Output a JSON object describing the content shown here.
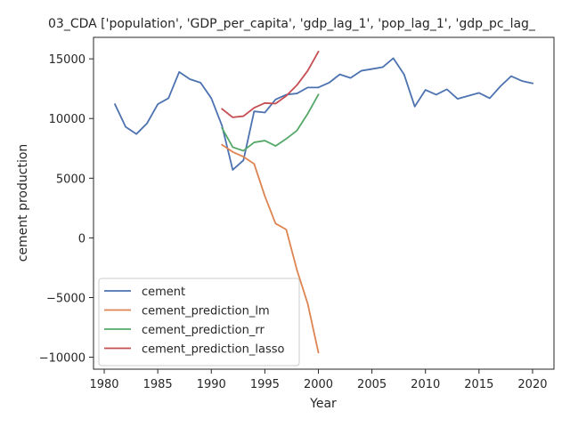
{
  "chart_data": {
    "type": "line",
    "title": "03_CDA ['population', 'GDP_per_capita', 'gdp_lag_1', 'pop_lag_1', 'gdp_pc_lag_",
    "xlabel": "Year",
    "ylabel": "cement production",
    "xlim": [
      1979.0,
      2022.0
    ],
    "ylim": [
      -11000,
      16800
    ],
    "xticks": [
      1980,
      1985,
      1990,
      1995,
      2000,
      2005,
      2010,
      2015,
      2020
    ],
    "yticks": [
      -10000,
      -5000,
      0,
      5000,
      10000,
      15000
    ],
    "ytick_labels": [
      "−10000",
      "−5000",
      "0",
      "5000",
      "10000",
      "15000"
    ],
    "grid": false,
    "legend_position": "lower-left",
    "series": [
      {
        "name": "cement",
        "color": "#4c72b0",
        "x": [
          1981,
          1982,
          1983,
          1984,
          1985,
          1986,
          1987,
          1988,
          1989,
          1990,
          1991,
          1992,
          1993,
          1994,
          1995,
          1996,
          1997,
          1998,
          1999,
          2000,
          2001,
          2002,
          2003,
          2004,
          2005,
          2006,
          2007,
          2008,
          2009,
          2010,
          2011,
          2012,
          2013,
          2014,
          2015,
          2016,
          2017,
          2018,
          2019,
          2020
        ],
        "y": [
          11200,
          9300,
          8700,
          9600,
          11200,
          11700,
          13900,
          13300,
          13000,
          11700,
          9400,
          5700,
          6500,
          10600,
          10500,
          11600,
          12000,
          12100,
          12600,
          12600,
          13000,
          13700,
          13400,
          14000,
          14150,
          14300,
          15050,
          13700,
          11000,
          12400,
          12000,
          12450,
          11650,
          11900,
          12150,
          11700,
          12700,
          13550,
          13150,
          12950
        ]
      },
      {
        "name": "cement_prediction_lm",
        "color": "#dd8452",
        "x": [
          1991,
          1992,
          1993,
          1994,
          1995,
          1996,
          1997,
          1998,
          1999,
          2000
        ],
        "y": [
          7800,
          7200,
          6800,
          6200,
          3500,
          1200,
          700,
          -2700,
          -5500,
          -9600
        ]
      },
      {
        "name": "cement_prediction_rr",
        "color": "#55a868",
        "x": [
          1991,
          1992,
          1993,
          1994,
          1995,
          1996,
          1997,
          1998,
          1999,
          2000
        ],
        "y": [
          9200,
          7600,
          7300,
          8000,
          8150,
          7700,
          8300,
          9000,
          10400,
          12000
        ]
      },
      {
        "name": "cement_prediction_lasso",
        "color": "#c44e52",
        "x": [
          1991,
          1992,
          1993,
          1994,
          1995,
          1996,
          1997,
          1998,
          1999,
          2000
        ],
        "y": [
          10800,
          10100,
          10200,
          10900,
          11300,
          11250,
          11900,
          12800,
          14000,
          15600
        ]
      }
    ]
  }
}
